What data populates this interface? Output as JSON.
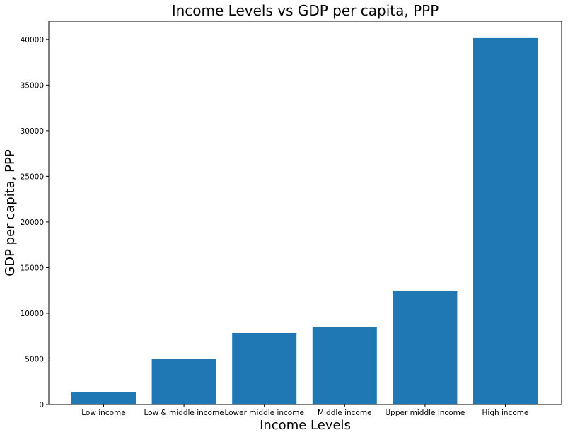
{
  "chart_data": {
    "type": "bar",
    "title": "Income Levels vs GDP per capita, PPP",
    "xlabel": "Income Levels",
    "ylabel": "GDP per capita, PPP",
    "categories": [
      "Low income",
      "Low & middle income",
      "Lower middle income",
      "Middle income",
      "Upper middle income",
      "High income"
    ],
    "values": [
      1380,
      5000,
      7830,
      8520,
      12480,
      40150
    ],
    "ylim": [
      0,
      42000
    ],
    "yticks": [
      "0",
      "5000",
      "10000",
      "15000",
      "20000",
      "25000",
      "30000",
      "35000",
      "40000"
    ],
    "grid": false,
    "legend": "none",
    "bar_color": "#1f77b4",
    "axis_color": "#000000"
  }
}
